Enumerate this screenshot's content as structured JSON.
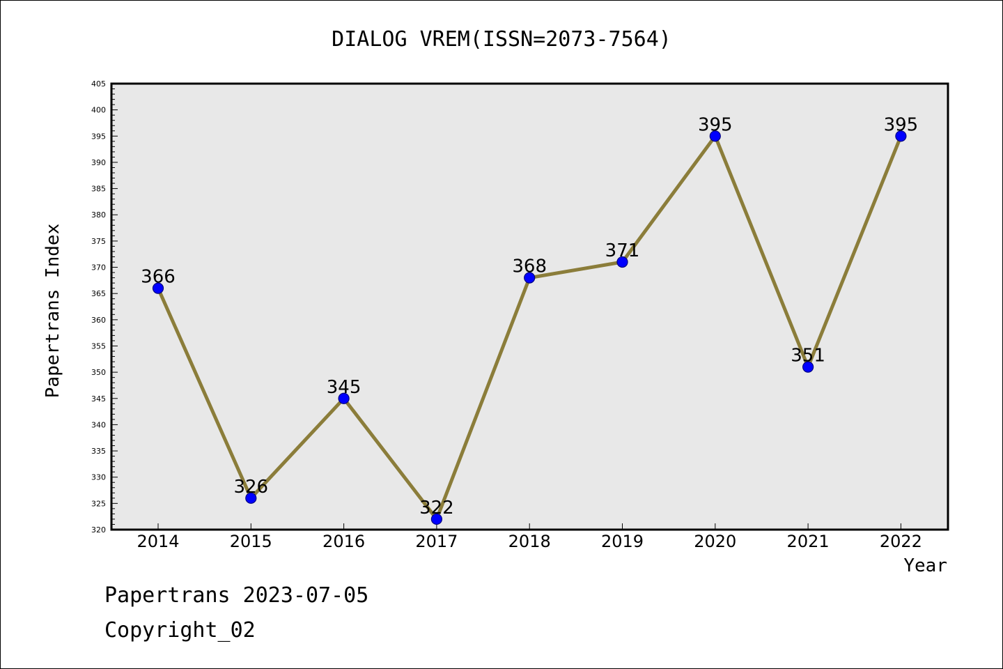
{
  "chart_data": {
    "type": "line",
    "title": "DIALOG VREM(ISSN=2073-7564)",
    "xlabel": "Year",
    "ylabel": "Papertrans Index",
    "categories": [
      "2014",
      "2015",
      "2016",
      "2017",
      "2018",
      "2019",
      "2020",
      "2021",
      "2022"
    ],
    "series": [
      {
        "values": [
          366,
          326,
          345,
          322,
          368,
          371,
          395,
          351,
          395
        ],
        "data_labels": [
          "366",
          "326",
          "345",
          "322",
          "368",
          "371",
          "395",
          "351",
          "395"
        ]
      }
    ],
    "ylim": [
      320,
      405
    ],
    "y_major_step": 5,
    "y_minor_step": 1,
    "y_tick_labels": [
      "320",
      "325",
      "330",
      "335",
      "340",
      "345",
      "350",
      "355",
      "360",
      "365",
      "370",
      "375",
      "380",
      "385",
      "390",
      "395",
      "400",
      "405"
    ],
    "grid": false,
    "legend": "none",
    "colors": {
      "plot_background": "#e8e8e8",
      "line": "#8b7d3a",
      "marker_fill": "#0000ff",
      "marker_stroke": "#000080",
      "frame": "#000000"
    }
  },
  "footer": {
    "date_line": "Papertrans 2023-07-05",
    "copyright_line": "Copyright_02"
  }
}
